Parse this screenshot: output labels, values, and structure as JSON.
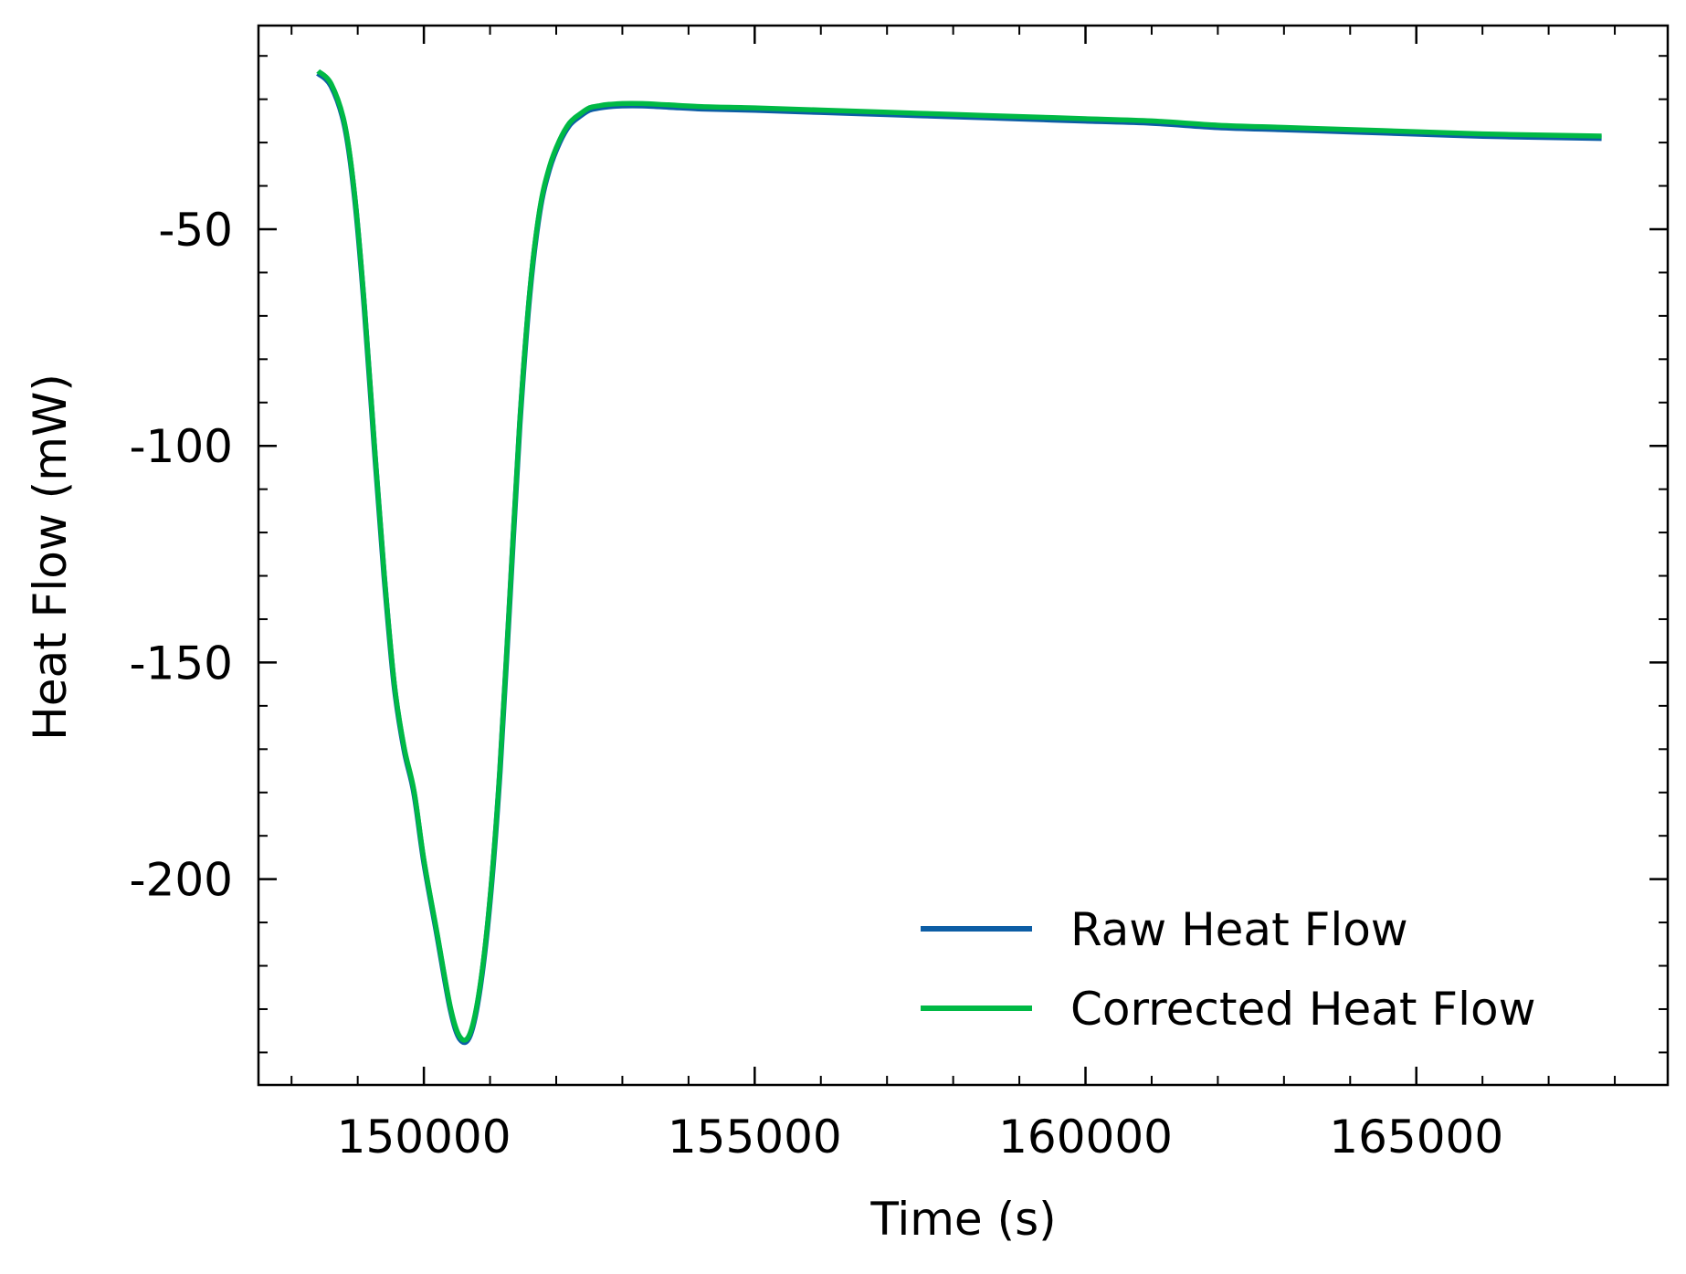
{
  "chart_data": {
    "type": "line",
    "title": "",
    "xlabel": "Time (s)",
    "ylabel": "Heat Flow (mW)",
    "xlim": [
      147500,
      168800
    ],
    "ylim": [
      -247.5,
      -3
    ],
    "x_ticks": [
      150000,
      155000,
      160000,
      165000
    ],
    "x_tick_labels": [
      "150000",
      "155000",
      "160000",
      "165000"
    ],
    "x_minor_step": 1000,
    "y_ticks": [
      -50,
      -100,
      -150,
      -200
    ],
    "y_tick_labels": [
      "-50",
      "-100",
      "-150",
      "-200"
    ],
    "y_minor_step": 10,
    "grid": false,
    "legend_position": "lower-right",
    "series": [
      {
        "name": "Raw Heat Flow",
        "color": "#0C5DA5",
        "x": [
          148400,
          148600,
          148800,
          148950,
          149100,
          149250,
          149400,
          149550,
          149700,
          149850,
          150000,
          150200,
          150400,
          150550,
          150700,
          150850,
          151000,
          151150,
          151300,
          151450,
          151600,
          151750,
          151900,
          152050,
          152200,
          152350,
          152500,
          152650,
          152800,
          153000,
          153300,
          153700,
          154200,
          155000,
          156000,
          157000,
          158000,
          159000,
          160000,
          161000,
          162000,
          163000,
          164000,
          165000,
          166000,
          167000,
          167800
        ],
        "y": [
          -14,
          -17,
          -26,
          -42,
          -68,
          -100,
          -130,
          -155,
          -170,
          -180,
          -196,
          -213,
          -230,
          -237,
          -236,
          -225,
          -205,
          -175,
          -135,
          -95,
          -65,
          -46,
          -36,
          -30,
          -26,
          -24,
          -22.5,
          -22,
          -21.7,
          -21.5,
          -21.5,
          -21.8,
          -22.2,
          -22.5,
          -23,
          -23.5,
          -24,
          -24.5,
          -25,
          -25.5,
          -26.5,
          -27,
          -27.5,
          -28,
          -28.5,
          -28.8,
          -29
        ]
      },
      {
        "name": "Corrected Heat Flow",
        "color": "#00B945",
        "x": [
          148400,
          148600,
          148800,
          148950,
          149100,
          149250,
          149400,
          149550,
          149700,
          149850,
          150000,
          150200,
          150400,
          150550,
          150700,
          150850,
          151000,
          151150,
          151300,
          151450,
          151600,
          151750,
          151900,
          152050,
          152200,
          152350,
          152500,
          152650,
          152800,
          153000,
          153300,
          153700,
          154200,
          155000,
          156000,
          157000,
          158000,
          159000,
          160000,
          161000,
          162000,
          163000,
          164000,
          165000,
          166000,
          167000,
          167800
        ],
        "y": [
          -13.5,
          -16.5,
          -25.5,
          -41.5,
          -67.5,
          -99.5,
          -129.5,
          -154.5,
          -169.5,
          -179.5,
          -195.5,
          -212.5,
          -229.5,
          -236.5,
          -235.5,
          -224.5,
          -204.5,
          -174.5,
          -134.5,
          -94.5,
          -64.5,
          -45.5,
          -35.5,
          -29.5,
          -25.5,
          -23.5,
          -22,
          -21.5,
          -21.2,
          -21,
          -21,
          -21.3,
          -21.7,
          -22,
          -22.5,
          -23,
          -23.5,
          -24,
          -24.5,
          -25,
          -26,
          -26.5,
          -27,
          -27.5,
          -28,
          -28.3,
          -28.5
        ]
      }
    ]
  }
}
